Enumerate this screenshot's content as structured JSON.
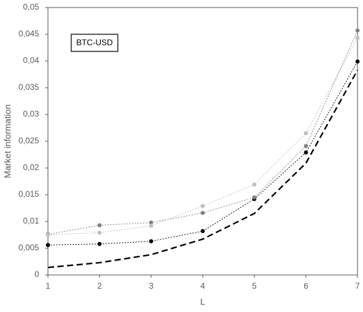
{
  "chart_data": {
    "type": "line",
    "annotation": "BTC-USD",
    "xlabel": "L",
    "ylabel": "Market information",
    "x": [
      1,
      2,
      3,
      4,
      5,
      6,
      7
    ],
    "series": [
      {
        "color": "#000000",
        "line_style": "long-dash",
        "markers": false,
        "values": [
          0.0014,
          0.0023,
          0.0038,
          0.0067,
          0.0115,
          0.0209,
          0.0383
        ]
      },
      {
        "color": "#000000",
        "line_style": "dotted",
        "markers": true,
        "values": [
          0.0056,
          0.0058,
          0.0063,
          0.0082,
          0.0142,
          0.0229,
          0.0399
        ]
      },
      {
        "color": "#808080",
        "line_style": "dotted",
        "markers": true,
        "values": [
          0.0076,
          0.0093,
          0.0098,
          0.0116,
          0.0145,
          0.0241,
          0.0457
        ]
      },
      {
        "color": "#bfbfbf",
        "line_style": "dotted",
        "markers": true,
        "values": [
          0.0075,
          0.0079,
          0.0092,
          0.0129,
          0.0169,
          0.0265,
          0.0443
        ]
      }
    ],
    "xlim": [
      1,
      7
    ],
    "xticks": [
      1,
      2,
      3,
      4,
      5,
      6,
      7
    ],
    "ylim": [
      0,
      0.05
    ],
    "yticks": [
      0,
      {
        "value": 0.005,
        "label": "0,005"
      },
      {
        "value": 0.01,
        "label": "0,01"
      },
      {
        "value": 0.015,
        "label": "0,015"
      },
      {
        "value": 0.02,
        "label": "0,02"
      },
      {
        "value": 0.025,
        "label": "0,025"
      },
      {
        "value": 0.03,
        "label": "0,03"
      },
      {
        "value": 0.035,
        "label": "0,035"
      },
      {
        "value": 0.04,
        "label": "0,04"
      },
      {
        "value": 0.045,
        "label": "0,045"
      },
      {
        "value": 0.05,
        "label": "0,05"
      }
    ],
    "grid": false
  }
}
